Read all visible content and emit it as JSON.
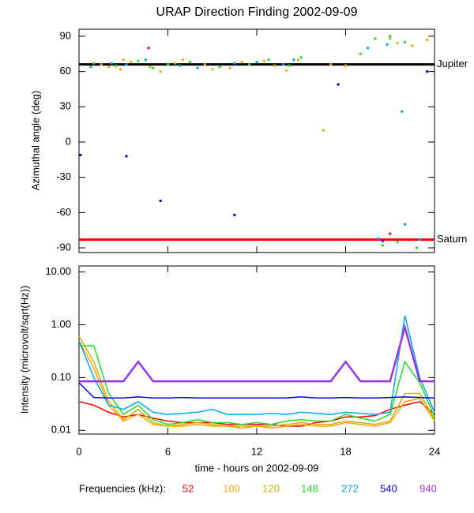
{
  "chart_data": [
    {
      "type": "scatter",
      "title": "URAP Direction Finding  2002-09-09",
      "ylabel": "Azimuthal angle (deg)",
      "xlim": [
        0,
        24
      ],
      "xticks": [
        0,
        6,
        12,
        18,
        24
      ],
      "ylim": [
        -94,
        96
      ],
      "yticks": [
        90,
        60,
        30,
        0,
        -30,
        -60,
        -90
      ],
      "reference_lines": [
        {
          "label": "Jupiter",
          "value": 66,
          "color": "#000000"
        },
        {
          "label": "Saturn",
          "value": -83,
          "color": "#ff0000"
        }
      ],
      "series": [
        {
          "color": "#ffa500",
          "x": [
            2.0,
            2.8,
            3.5,
            5.5,
            7.0,
            8.5,
            10.2,
            12.5,
            14.0,
            17.0,
            18.0,
            21.5,
            23.5
          ],
          "y": [
            64,
            62,
            68,
            60,
            70,
            66,
            63,
            69,
            61,
            66,
            65,
            84,
            87
          ]
        },
        {
          "color": "#d4b000",
          "x": [
            1.5,
            3.0,
            4.8,
            6.5,
            9.0,
            11.0,
            13.2,
            14.8,
            16.5,
            21.0,
            22.5
          ],
          "y": [
            66,
            70,
            64,
            67,
            62,
            68,
            65,
            70,
            10,
            88,
            82
          ]
        },
        {
          "color": "#22dd22",
          "x": [
            1.0,
            2.5,
            4.0,
            5.0,
            6.0,
            7.5,
            9.5,
            11.5,
            12.8,
            14.2,
            15.0,
            19.0,
            20.0,
            21.0,
            22.0,
            20.5,
            21.5,
            22.8
          ],
          "y": [
            67,
            65,
            69,
            63,
            66,
            68,
            64,
            66,
            70,
            65,
            72,
            75,
            88,
            90,
            85,
            -88,
            -85,
            -90
          ]
        },
        {
          "color": "#00aaee",
          "x": [
            0.8,
            2.2,
            3.2,
            4.5,
            6.8,
            8.0,
            10.5,
            12.0,
            13.8,
            14.5,
            19.5,
            20.8,
            22.0,
            23.0,
            21.8,
            20.2
          ],
          "y": [
            64,
            67,
            66,
            70,
            65,
            63,
            67,
            68,
            66,
            70,
            80,
            83,
            -70,
            -83,
            26,
            -82
          ]
        },
        {
          "color": "#0000dd",
          "x": [
            0.1,
            3.2,
            5.5,
            10.5,
            17.5,
            20.5,
            23.5
          ],
          "y": [
            -11,
            -12,
            -50,
            -62,
            49,
            -84,
            60
          ]
        },
        {
          "color": "#ff0000",
          "x": [
            4.7,
            21.0
          ],
          "y": [
            80,
            -78
          ]
        }
      ]
    },
    {
      "type": "line",
      "log_y": true,
      "ylabel": "Intensity (microvolt/sqrt(Hz))",
      "xlabel": "time - hours on 2002-09-09",
      "xlim": [
        0,
        24
      ],
      "xticks": [
        0,
        6,
        12,
        18,
        24
      ],
      "ylim": [
        0.0085,
        13
      ],
      "yticks": [
        {
          "value": 10,
          "label": "10.00"
        },
        {
          "value": 1,
          "label": "1.00"
        },
        {
          "value": 0.1,
          "label": "0.10"
        },
        {
          "value": 0.01,
          "label": "0.01"
        }
      ],
      "legend_title": "Frequencies (kHz):",
      "x": [
        0,
        1,
        2,
        3,
        4,
        5,
        6,
        7,
        8,
        9,
        10,
        11,
        12,
        13,
        14,
        15,
        16,
        17,
        18,
        19,
        20,
        21,
        22,
        23,
        24
      ],
      "series": [
        {
          "name": "52",
          "color": "#ff0000",
          "values": [
            0.035,
            0.03,
            0.022,
            0.018,
            0.02,
            0.017,
            0.015,
            0.014,
            0.014,
            0.014,
            0.013,
            0.013,
            0.013,
            0.013,
            0.012,
            0.012,
            0.014,
            0.015,
            0.018,
            0.018,
            0.019,
            0.025,
            0.03,
            0.035,
            0.02
          ]
        },
        {
          "name": "100",
          "color": "#ffa500",
          "values": [
            0.5,
            0.15,
            0.03,
            0.015,
            0.02,
            0.013,
            0.012,
            0.012,
            0.013,
            0.012,
            0.012,
            0.011,
            0.012,
            0.011,
            0.012,
            0.013,
            0.012,
            0.012,
            0.014,
            0.013,
            0.012,
            0.014,
            0.035,
            0.04,
            0.015
          ]
        },
        {
          "name": "120",
          "color": "#d4b000",
          "values": [
            0.6,
            0.2,
            0.035,
            0.016,
            0.025,
            0.014,
            0.012,
            0.013,
            0.014,
            0.013,
            0.012,
            0.012,
            0.012,
            0.012,
            0.013,
            0.014,
            0.013,
            0.013,
            0.015,
            0.014,
            0.013,
            0.015,
            0.05,
            0.05,
            0.016
          ]
        },
        {
          "name": "148",
          "color": "#22dd22",
          "values": [
            0.4,
            0.4,
            0.05,
            0.02,
            0.03,
            0.016,
            0.013,
            0.014,
            0.016,
            0.014,
            0.014,
            0.013,
            0.014,
            0.013,
            0.015,
            0.016,
            0.015,
            0.015,
            0.02,
            0.017,
            0.015,
            0.02,
            0.2,
            0.08,
            0.018
          ]
        },
        {
          "name": "272",
          "color": "#00aaee",
          "values": [
            0.5,
            0.1,
            0.03,
            0.025,
            0.035,
            0.022,
            0.02,
            0.021,
            0.022,
            0.025,
            0.02,
            0.02,
            0.02,
            0.021,
            0.02,
            0.022,
            0.021,
            0.02,
            0.022,
            0.021,
            0.02,
            0.022,
            1.5,
            0.1,
            0.022
          ]
        },
        {
          "name": "540",
          "color": "#0000dd",
          "values": [
            0.08,
            0.042,
            0.041,
            0.041,
            0.043,
            0.041,
            0.041,
            0.042,
            0.041,
            0.041,
            0.041,
            0.041,
            0.041,
            0.041,
            0.041,
            0.043,
            0.041,
            0.041,
            0.042,
            0.041,
            0.041,
            0.042,
            0.043,
            0.042,
            0.041
          ]
        },
        {
          "name": "940",
          "color": "#9933ee",
          "values": [
            0.085,
            0.085,
            0.085,
            0.085,
            0.2,
            0.085,
            0.085,
            0.085,
            0.085,
            0.085,
            0.085,
            0.085,
            0.085,
            0.085,
            0.085,
            0.085,
            0.085,
            0.085,
            0.2,
            0.085,
            0.085,
            0.085,
            0.9,
            0.085,
            0.085
          ]
        }
      ]
    }
  ]
}
